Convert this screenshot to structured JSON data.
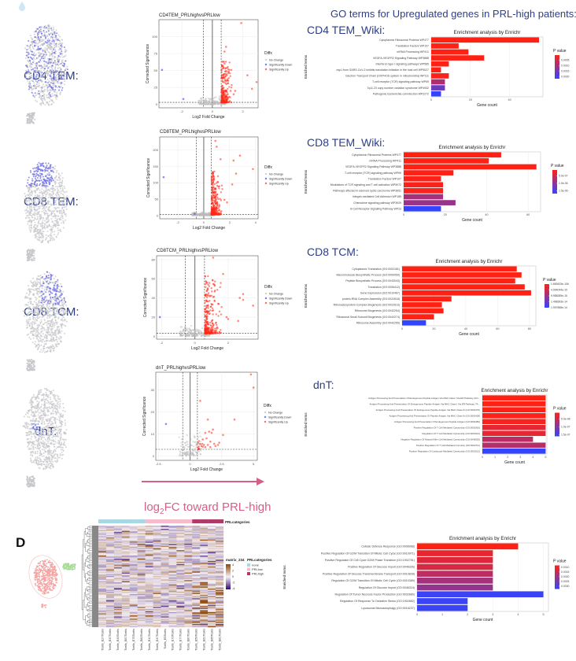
{
  "header": {
    "go_title": "GO terms for Upregulated genes in PRL-high patients:"
  },
  "cell_types": [
    "CD4 TEM:",
    "CD8 TEM:",
    "CD8 TCM:",
    "dnT:"
  ],
  "section_labels": [
    "CD4 TEM_Wiki:",
    "CD8 TEM_Wiki:",
    "CD8 TCM:",
    "dnT:"
  ],
  "arrow_label": {
    "prefix": "log",
    "sub": "2",
    "suffix": "FC toward PRL-high"
  },
  "panel_label": "D",
  "colors": {
    "navy": "#2c3e8c",
    "up": "#ff2a1a",
    "down": "#3340ff",
    "pink_arrow": "#d4608a",
    "prl_none": "#a8d8e6",
    "prl_low": "#f7bccb",
    "prl_high": "#b03a68"
  },
  "chart_data": [
    {
      "type": "scatter",
      "id": "volcano-cd4",
      "title": "CD4TEM_PRLhighvsPRLlow",
      "xlabel": "Log2 Fold Change",
      "ylabel": "Corrected Significance",
      "xlim": [
        -3.5,
        3.0
      ],
      "ylim": [
        -5,
        125
      ],
      "xticks": [
        -2,
        0,
        2
      ],
      "yticks": [
        0,
        25,
        50,
        75,
        100
      ],
      "thresholds": {
        "fc": 0.58,
        "sig": 3
      },
      "legend": {
        "title": "Diffx",
        "entries": [
          "No Change",
          "Significantly Down",
          "Significantly Up"
        ]
      },
      "down_points": [
        [
          -3.3,
          51
        ],
        [
          -1.9,
          8
        ]
      ],
      "up_points": [
        [
          1.9,
          120
        ],
        [
          0.9,
          85
        ],
        [
          0.8,
          78
        ],
        [
          2.3,
          43
        ],
        [
          2.6,
          23
        ],
        [
          2.9,
          33
        ],
        [
          1.5,
          20
        ],
        [
          1.4,
          15
        ],
        [
          1.2,
          20
        ],
        [
          0.8,
          60
        ]
      ],
      "up_cluster": {
        "x_range": [
          0.6,
          1.2
        ],
        "y_max": 60,
        "n": 260
      },
      "nc_cluster": {
        "n": 180
      }
    },
    {
      "type": "scatter",
      "id": "volcano-cd8tem",
      "title": "CD8TEM_PRLhighvsPRLlow",
      "xlabel": "Log2 Fold Change",
      "ylabel": "Corrected Significance",
      "xlim": [
        -3.4,
        4.2
      ],
      "ylim": [
        -10,
        240
      ],
      "xticks": [
        -2,
        0,
        2,
        4
      ],
      "yticks": [
        0,
        50,
        100,
        150,
        200
      ],
      "thresholds": {
        "fc": 0.58,
        "sig": 3
      },
      "legend": {
        "title": "Diffx",
        "entries": [
          "No Change",
          "Significantly Down",
          "Significantly Up"
        ]
      },
      "down_points": [
        [
          -3.1,
          117
        ],
        [
          -0.7,
          5
        ]
      ],
      "up_points": [
        [
          0.9,
          228
        ],
        [
          1.0,
          210
        ],
        [
          2.8,
          183
        ],
        [
          2.3,
          168
        ],
        [
          3.8,
          142
        ],
        [
          2.5,
          128
        ],
        [
          2.2,
          95
        ],
        [
          1.3,
          172
        ],
        [
          1.8,
          40
        ],
        [
          1.6,
          48
        ]
      ],
      "up_cluster": {
        "x_range": [
          0.6,
          1.3
        ],
        "y_max": 140,
        "n": 320
      },
      "nc_cluster": {
        "n": 200
      }
    },
    {
      "type": "scatter",
      "id": "volcano-cd8tcm",
      "title": "CD8TCM_PRLhighvsPRLlow",
      "xlabel": "Log2 Fold Change",
      "ylabel": "Corrected Significance",
      "xlim": [
        -2.3,
        3.8
      ],
      "ylim": [
        -3,
        84
      ],
      "xticks": [
        -2,
        0,
        2
      ],
      "yticks": [
        0,
        20,
        40,
        60,
        80
      ],
      "thresholds": {
        "fc": 0.58,
        "sig": 3
      },
      "legend": {
        "title": "Diffx",
        "entries": [
          "No Change",
          "Significantly Down",
          "Significantly Up"
        ]
      },
      "down_points": [
        [
          -2.1,
          20
        ]
      ],
      "up_points": [
        [
          1.1,
          82
        ],
        [
          1.7,
          65
        ],
        [
          3.5,
          32
        ],
        [
          2.7,
          40
        ],
        [
          2.9,
          44
        ],
        [
          2.9,
          38
        ],
        [
          2.6,
          16
        ],
        [
          2.0,
          18
        ],
        [
          1.9,
          20
        ],
        [
          1.4,
          34
        ]
      ],
      "up_cluster": {
        "x_range": [
          0.6,
          1.5
        ],
        "y_max": 60,
        "n": 300
      },
      "nc_cluster": {
        "n": 180
      }
    },
    {
      "type": "scatter",
      "id": "volcano-dnt",
      "title": "dnT_PRLhighvsPRLlow",
      "xlabel": "Log2 Fold Change",
      "ylabel": "Corrected Significance",
      "xlim": [
        -2.7,
        5.3
      ],
      "ylim": [
        -2,
        38
      ],
      "xticks": [
        -2.5,
        0,
        2.5,
        5.0
      ],
      "yticks": [
        0,
        10,
        20,
        30
      ],
      "thresholds": {
        "fc": 0.58,
        "sig": 3
      },
      "legend": {
        "title": "Diffx",
        "entries": [
          "No Change",
          "Significantly Down",
          "Significantly Up"
        ]
      },
      "down_points": [
        [
          -1.9,
          14.5
        ]
      ],
      "up_points": [
        [
          4.8,
          37
        ],
        [
          5.0,
          31
        ],
        [
          0.8,
          25
        ],
        [
          3.5,
          16.5
        ],
        [
          1.4,
          16.5
        ],
        [
          2.6,
          9.5
        ],
        [
          1.8,
          12
        ],
        [
          1.5,
          11
        ],
        [
          1.7,
          10.5
        ],
        [
          1.2,
          10.5
        ],
        [
          2.3,
          6
        ],
        [
          1.0,
          7.5
        ],
        [
          1.3,
          8
        ],
        [
          1.9,
          5.5
        ],
        [
          2.0,
          4.5
        ],
        [
          1.6,
          6.5
        ],
        [
          1.1,
          5
        ],
        [
          0.9,
          4.5
        ],
        [
          1.2,
          4
        ],
        [
          1.4,
          5
        ],
        [
          0.8,
          5.5
        ],
        [
          2.2,
          5
        ],
        [
          1.6,
          4
        ],
        [
          1.0,
          4.2
        ]
      ],
      "up_cluster": {
        "x_range": [
          0.6,
          1.0
        ],
        "y_max": 6,
        "n": 10
      },
      "nc_cluster": {
        "n": 120
      }
    },
    {
      "type": "bar",
      "id": "enrich-cd4tem",
      "title": "Enrichment analysis by Enrichr",
      "xlabel": "Gene count",
      "ylabel": "Enriched terms",
      "xlim": [
        0,
        57
      ],
      "xticks": [
        0,
        20,
        40
      ],
      "legend": {
        "title": "P value",
        "range": [
          5e-05,
          0.0022
        ],
        "ticks": [
          {
            "v": 0.0005,
            "t": "0.0005"
          },
          {
            "v": 0.001,
            "t": "0.0010"
          },
          {
            "v": 0.0015,
            "t": "0.0015"
          },
          {
            "v": 0.002,
            "t": "0.0020"
          }
        ]
      },
      "categories": [
        "Cytoplasmic Ribosomal Proteins WP477",
        "Translation Factors WP107",
        "mRNA Processing WP411",
        "VEGFA-VEGFR2 Signaling Pathway WP3888",
        "Interferon type I signaling pathways WP585",
        "nsp1 from SARS-CoV-2 inhibits translation initiation in the host cell WP5027",
        "Electron Transport Chain (OXPHOS system in mitochondria) WP111",
        "T-cell receptor (TCR) signaling pathway WP69",
        "7q11.23 copy number variation syndrome WP4932",
        "Pathogenic Escherichia coli infection WP2272"
      ],
      "values": [
        55,
        14,
        19,
        27,
        9,
        5,
        9,
        7,
        7,
        5
      ],
      "pvalues": [
        5e-05,
        5e-05,
        5e-05,
        5e-05,
        6e-05,
        8e-05,
        0.0001,
        0.0009,
        0.0016,
        0.0022
      ]
    },
    {
      "type": "bar",
      "id": "enrich-cd8tem",
      "title": "Enrichment analysis by Enrichr",
      "xlabel": "Gene count",
      "ylabel": "Enriched terms",
      "xlim": [
        0,
        66
      ],
      "xticks": [
        0,
        20,
        40,
        60
      ],
      "legend": {
        "title": "P value",
        "range": [
          1e-07,
          1.7e-06
        ],
        "ticks": [
          {
            "v": 5e-07,
            "t": "5.0e-07"
          },
          {
            "v": 1e-06,
            "t": "1.0e-06"
          },
          {
            "v": 1.5e-06,
            "t": "1.5e-06"
          }
        ]
      },
      "categories": [
        "Cytoplasmic Ribosomal Proteins WP477",
        "mRNA Processing WP411",
        "VEGFA-VEGFR2 Signaling Pathway WP3888",
        "T-cell receptor (TCR) signaling pathway WP69",
        "Translation Factors WP107",
        "Modulators of TCR signaling and T cell activation WP5072",
        "Pathways affected in adenoid cystic carcinoma WP3651",
        "Integrin-mediated Cell Adhesion WP185",
        "Chemokine signaling pathway WP3929",
        "B Cell Receptor Signaling Pathway WP23"
      ],
      "values": [
        47,
        41,
        64,
        24,
        18,
        19,
        19,
        19,
        25,
        18
      ],
      "pvalues": [
        1e-07,
        1e-07,
        1e-07,
        1.2e-07,
        1.3e-07,
        1.5e-07,
        1.6e-07,
        8e-07,
        9e-07,
        1.7e-06
      ]
    },
    {
      "type": "bar",
      "id": "enrich-cd8tcm",
      "title": "Enrichment analysis by Enrichr",
      "xlabel": "Gene count",
      "ylabel": "Enriched terms",
      "xlim": [
        0,
        84
      ],
      "xticks": [
        0,
        20,
        40,
        60,
        80
      ],
      "legend": {
        "title": "P value",
        "range": [
          1.669433e-106,
          1.997858e-14
        ],
        "ticks": [
          {
            "v": 1.669433e-106,
            "t": "1.669433e-106"
          },
          {
            "v": 4.994044e-15,
            "t": "4.994044e-15"
          },
          {
            "v": 9.988289e-15,
            "t": "9.988289e-15"
          },
          {
            "v": 1.498393e-14,
            "t": "1.498393e-14"
          },
          {
            "v": 1.997858e-14,
            "t": "1.997858e-14"
          }
        ]
      },
      "categories": [
        "Cytoplasmic Translation (GO:0002181)",
        "Macromolecule Biosynthetic Process (GO:0009059)",
        "Peptide Biosynthetic Process (GO:0043043)",
        "Translation (GO:0006412)",
        "Gene Expression (GO:0010467)",
        "protein-RNA Complex Assembly (GO:0022618)",
        "Ribonucleoprotein Complex Biogenesis (GO:0022613)",
        "Ribosome Biogenesis (GO:0042254)",
        "Ribosomal Small Subunit Biogenesis (GO:0042274)",
        "Ribosome Assembly (GO:0042255)"
      ],
      "values": [
        72,
        75,
        71,
        77,
        81,
        31,
        25,
        26,
        20,
        15
      ],
      "pvalues": [
        1e-106,
        1e-90,
        1e-88,
        1e-80,
        1e-70,
        1e-20,
        1e-18,
        1e-18,
        1e-16,
        1.997858e-14
      ]
    },
    {
      "type": "bar",
      "id": "enrich-dnt",
      "title": "Enrichment analysis by Enrichr",
      "xlabel": "Gene count",
      "ylabel": "Enriched terms",
      "xlim": [
        0,
        5.1
      ],
      "xticks": [
        0,
        1,
        2,
        3,
        4,
        5
      ],
      "legend": {
        "title": "P value",
        "range": [
          1e-08,
          1.6e-07
        ],
        "ticks": [
          {
            "v": 5e-08,
            "t": "5.0e-08"
          },
          {
            "v": 1e-07,
            "t": "1.0e-07"
          },
          {
            "v": 1.5e-07,
            "t": "1.5e-07"
          }
        ]
      },
      "categories": [
        "Antigen Processing And Presentation Of Endogenous Peptide Antigen Via MHC Class I Via ER Pathway (GO...",
        "Antigen Processing And Presentation Of Endogenous Peptide Antigen Via MHC Class I Via ER Pathway, TA...",
        "Antigen Processing And Presentation Of Endogenous Peptide Antigen Via MHC Class Ib (GO:0002476)",
        "Antigen Processing And Presentation Of Peptide Antigen Via MHC Class Ib (GO:0002428)",
        "Antigen Processing And Presentation Of Endogenous Peptide Antigen (GO:0002483)",
        "Positive Regulation Of T Cell Mediated Cytotoxicity (GO:0001916)",
        "Regulation Of T Cell Mediated Cytotoxicity (GO:0001914)",
        "Negative Regulation Of Natural Killer Cell Mediated Cytotoxicity (GO:0045953)",
        "Positive Regulation Of T Cell Mediated Immunity (GO:0002711)",
        "Positive Regulation Of Leukocyte Mediated Cytotoxicity (GO:0001912)"
      ],
      "values": [
        5,
        5,
        5,
        5,
        5,
        5,
        5,
        4,
        5,
        5
      ],
      "pvalues": [
        1e-08,
        1e-08,
        1e-08,
        1.2e-08,
        1.5e-08,
        3e-08,
        3e-08,
        6e-08,
        6.5e-08,
        1.6e-07
      ]
    },
    {
      "type": "bar",
      "id": "enrich-heatmap",
      "title": "Enrichment analysis by Enrichr",
      "xlabel": "Gene count",
      "ylabel": "Enriched terms",
      "xlim": [
        0,
        5.2
      ],
      "xticks": [
        0,
        1,
        2,
        3,
        4,
        5
      ],
      "legend": {
        "title": "P value",
        "range": [
          0.0008,
          0.0033
        ],
        "ticks": [
          {
            "v": 0.001,
            "t": "0.0010"
          },
          {
            "v": 0.0015,
            "t": "0.0015"
          },
          {
            "v": 0.002,
            "t": "0.0020"
          },
          {
            "v": 0.0025,
            "t": "0.0025"
          },
          {
            "v": 0.003,
            "t": "0.0030"
          }
        ]
      },
      "categories": [
        "Cellular Defense Response (GO:0006968)",
        "Positive Regulation Of G2/M Transition Of Mitotic Cell Cycle (GO:0010971)",
        "Positive Regulation Of Cell Cycle G2/M Phase Transition (GO:1902751)",
        "Positive Regulation Of Glucose Import (GO:0046326)",
        "Positive Regulation Of Glucose Transmembrane Transport (GO:0010828)",
        "Regulation Of G2/M Transition Of Mitotic Cell Cycle (GO:0010389)",
        "Regulation Of Glucose Import (GO:0046324)",
        "Regulation Of Tumor Necrosis Factor Production (GO:0032680)",
        "Regulation Of Response To Oxidative Stress (GO:1902882)",
        "Lysosomal Microautophagy (GO:0016237)"
      ],
      "values": [
        4,
        3,
        3,
        3,
        3,
        3,
        3,
        5,
        2,
        2
      ],
      "pvalues": [
        0.0008,
        0.0011,
        0.0012,
        0.0013,
        0.0016,
        0.0019,
        0.0021,
        0.0032,
        0.0032,
        0.0032
      ]
    },
    {
      "type": "heatmap",
      "id": "heatmap-matrix234",
      "annotation_title": "PRLcategories",
      "columns": [
        "Tcells_E27Tcells",
        "Tcells_E37Tcells",
        "Tcells_E43Tcells",
        "Tcells_E67Tcells",
        "Tcells_E75Tcells",
        "Tcells_E83Tcells",
        "Tcells_E41Tcells",
        "Tcells_E47Tcells",
        "Tcells_E5Tcells",
        "Tcells_E73Tcells",
        "Tcells_E77Tcells",
        "Tcells_E87Tcells",
        "Tcells_E59Tcells",
        "Tcells_E61Tcells",
        "Tcells_E65Tcells",
        "Tcells_E81Tcells"
      ],
      "column_groups": [
        "none",
        "none",
        "none",
        "none",
        "none",
        "none",
        "PRLlow",
        "PRLlow",
        "PRLlow",
        "PRLlow",
        "PRLlow",
        "PRLlow",
        "PRLhigh",
        "PRLhigh",
        "PRLhigh",
        "PRLhigh"
      ],
      "scale_title": "matrix_234",
      "scale_ticks": [
        "4",
        "2",
        "0",
        "-2",
        "-4"
      ],
      "range": [
        -4,
        4
      ],
      "group_legend_title": "PRLcategories",
      "group_legend": [
        "none",
        "PRLlow",
        "PRLhigh"
      ]
    }
  ]
}
